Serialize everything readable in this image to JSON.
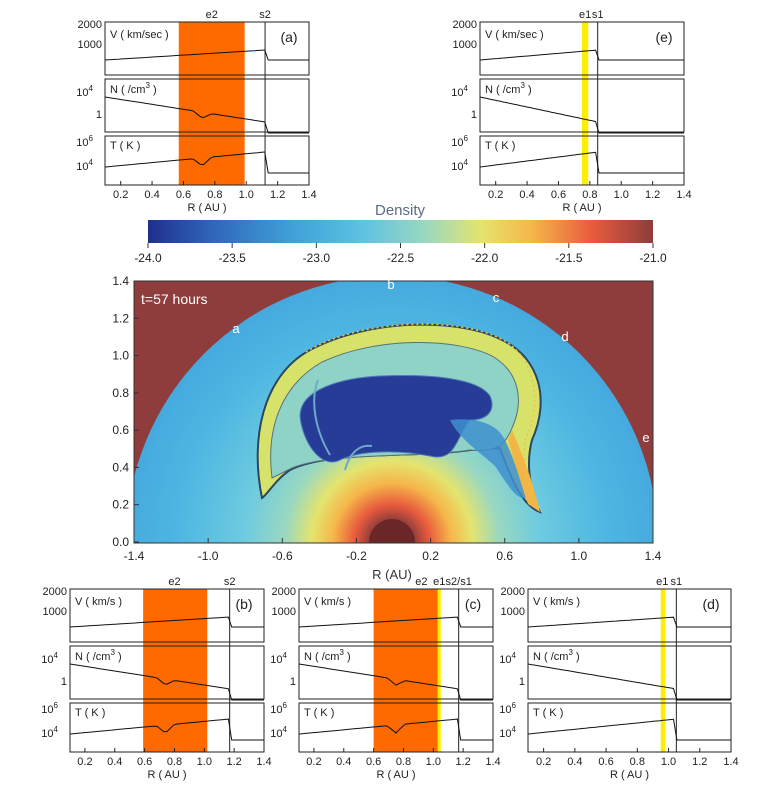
{
  "colorbar": {
    "title": "Density",
    "ticks": [
      "-24.0",
      "-23.5",
      "-23.0",
      "-22.5",
      "-22.0",
      "-21.5",
      "-21.0"
    ],
    "range": [
      -24.0,
      -21.0
    ],
    "colors": [
      "#1f2f8c",
      "#2f63b8",
      "#3f9fd8",
      "#5cc1e3",
      "#9ad8c0",
      "#e4e46e",
      "#f6b64a",
      "#e85b3d",
      "#8e3c3c"
    ]
  },
  "main_map": {
    "time_label": "t=57 hours",
    "xlabel": "R (AU)",
    "xticks": [
      "-1.4",
      "-1.0",
      "-0.6",
      "-0.2",
      "0.2",
      "0.6",
      "1.0",
      "1.4"
    ],
    "yticks": [
      "0.0",
      "0.2",
      "0.4",
      "0.6",
      "0.8",
      "1.0",
      "1.2",
      "1.4"
    ],
    "direction_labels": [
      "a",
      "b",
      "c",
      "d",
      "e"
    ],
    "background_color": "#8e3c3c"
  },
  "panels": [
    {
      "id": "a",
      "panel_label": "(a)",
      "shade": {
        "from": 0.57,
        "to": 0.99,
        "color": "#ff6a00"
      },
      "lines": [
        {
          "label": "e2",
          "x": 0.78
        },
        {
          "label": "s2",
          "x": 1.12
        }
      ],
      "boundary": 1.12
    },
    {
      "id": "b",
      "panel_label": "(b)",
      "shade": {
        "from": 0.59,
        "to": 1.02,
        "color": "#ff6a00"
      },
      "lines": [
        {
          "label": "e2",
          "x": 0.8
        },
        {
          "label": "s2",
          "x": 1.17
        }
      ],
      "boundary": 1.17
    },
    {
      "id": "c",
      "panel_label": "(c)",
      "shade": {
        "from": 0.6,
        "to": 1.03,
        "color": "#ff6a00"
      },
      "shade2": {
        "from": 1.03,
        "to": 1.05,
        "color": "#ffee00"
      },
      "lines": [
        {
          "label": "e2",
          "x": 0.92
        },
        {
          "label": "e1",
          "x": 1.04
        },
        {
          "label": "s2/s1",
          "x": 1.17
        }
      ],
      "boundary": 1.17
    },
    {
      "id": "d",
      "panel_label": "(d)",
      "shade": {
        "from": 0.95,
        "to": 0.98,
        "color": "#ffee00"
      },
      "lines": [
        {
          "label": "e1",
          "x": 0.96
        },
        {
          "label": "s1",
          "x": 1.05
        }
      ],
      "boundary": 1.05
    },
    {
      "id": "e",
      "panel_label": "(e)",
      "shade": {
        "from": 0.75,
        "to": 0.79,
        "color": "#ffee00"
      },
      "lines": [
        {
          "label": "e1",
          "x": 0.77
        },
        {
          "label": "s1",
          "x": 0.85
        }
      ],
      "boundary": 0.85
    }
  ],
  "panel_axes": {
    "xlabel": "R ( AU )",
    "xticks": [
      "0.2",
      "0.4",
      "0.6",
      "0.8",
      "1.0",
      "1.2",
      "1.4"
    ],
    "v_label_top": "V ( km/sec )",
    "v_label_bottom": "V ( km/s )",
    "n_label": "N ( /cm",
    "n_label_sup": "3",
    "n_label_end": ")",
    "t_label": "T ( K )",
    "v_ticks": [
      "2000",
      "1000"
    ],
    "n_ticks": [
      "10",
      "1"
    ],
    "n_tick_sup": "4",
    "t_ticks": [
      "10",
      "10"
    ],
    "t_tick_sups": [
      "6",
      "4"
    ]
  }
}
